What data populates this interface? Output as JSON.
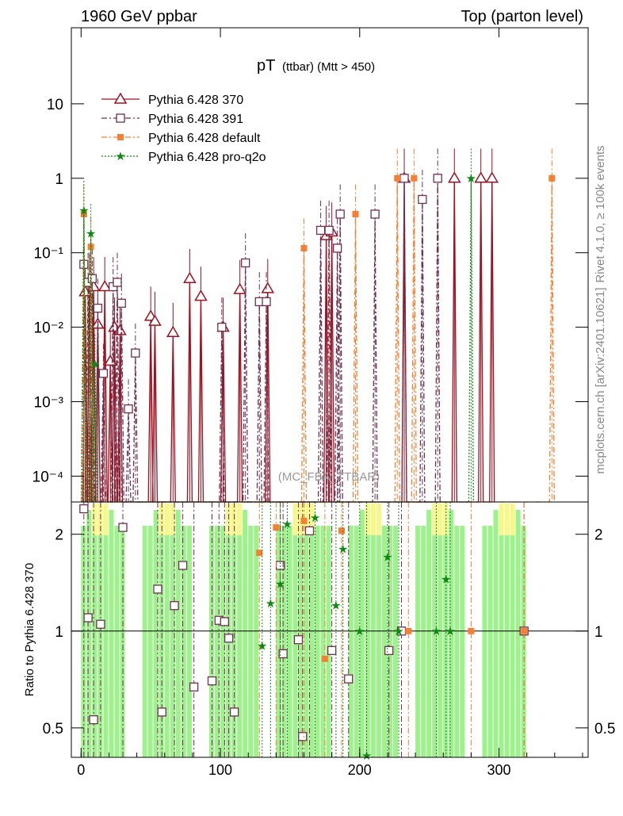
{
  "chart_data": {
    "type": "line",
    "header_left": "1960 GeV ppbar",
    "header_right": "Top (parton level)",
    "title_main": "pT",
    "title_sub": "(ttbar) (Mtt > 450)",
    "watermark": "(MC_FBA_TTBAR)",
    "side_label_top": "Rivet 4.1.0, ≥ 100k events",
    "side_label_bottom": "mcplots.cern.ch [arXiv:2401.10621]",
    "ratio_ylabel": "Ratio to Pythia 6.428 370",
    "xlim": [
      -7,
      364
    ],
    "ylim": [
      4.5e-05,
      105
    ],
    "ratio_ylim": [
      0.405,
      2.52
    ],
    "xticks": [
      0,
      100,
      200,
      300
    ],
    "yticks": [
      {
        "v": 10,
        "label": "10"
      },
      {
        "v": 1,
        "label": "1"
      },
      {
        "v": 0.1,
        "label": "10⁻¹"
      },
      {
        "v": 0.01,
        "label": "10⁻²"
      },
      {
        "v": 0.001,
        "label": "10⁻³"
      },
      {
        "v": 0.0001,
        "label": "10⁻⁴"
      }
    ],
    "ratio_yticks": [
      {
        "v": 2,
        "label": "2"
      },
      {
        "v": 1,
        "label": "1"
      },
      {
        "v": 0.5,
        "label": "0.5"
      }
    ],
    "series": [
      {
        "name": "Pythia 6.428 370",
        "color": "#a0101e",
        "marker": "triangle",
        "dash": "",
        "points": [
          [
            3,
            0.03
          ],
          [
            6,
            0.04
          ],
          [
            9,
            0.035
          ],
          [
            12,
            0.011
          ],
          [
            17,
            0.035
          ],
          [
            21,
            0.0035
          ],
          [
            24,
            0.01
          ],
          [
            28,
            0.009
          ],
          [
            50,
            0.014
          ],
          [
            53,
            0.012
          ],
          [
            66,
            0.0085
          ],
          [
            78,
            0.045
          ],
          [
            86,
            0.026
          ],
          [
            102,
            0.01
          ],
          [
            114,
            0.032
          ],
          [
            134,
            0.033
          ],
          [
            176,
            0.17
          ],
          [
            180,
            0.19
          ],
          [
            232,
            1
          ],
          [
            268,
            1
          ],
          [
            287,
            1
          ],
          [
            295,
            1
          ]
        ],
        "ratio": []
      },
      {
        "name": "Pythia 6.428 391",
        "color": "#6e3050",
        "marker": "square",
        "dash": "7,3,2,3",
        "points": [
          [
            2,
            0.07
          ],
          [
            5,
            0.04
          ],
          [
            8,
            0.045
          ],
          [
            12,
            0.018
          ],
          [
            16,
            0.0024
          ],
          [
            23,
            0.035
          ],
          [
            26,
            0.04
          ],
          [
            29,
            0.021
          ],
          [
            34,
            0.0008
          ],
          [
            39,
            0.0045
          ],
          [
            101,
            0.01
          ],
          [
            118,
            0.073
          ],
          [
            128,
            0.022
          ],
          [
            133,
            0.022
          ],
          [
            172,
            0.2
          ],
          [
            178,
            0.2
          ],
          [
            184,
            0.115
          ],
          [
            186,
            0.33
          ],
          [
            211,
            0.33
          ],
          [
            232,
            1
          ],
          [
            245,
            0.52
          ],
          [
            256,
            1
          ]
        ],
        "ratio": [
          [
            2,
            2.4
          ],
          [
            5,
            1.1
          ],
          [
            9,
            0.53
          ],
          [
            14,
            1.05
          ],
          [
            30,
            2.1
          ],
          [
            55,
            1.35
          ],
          [
            58,
            0.56
          ],
          [
            67,
            1.2
          ],
          [
            73,
            1.6
          ],
          [
            81,
            0.67
          ],
          [
            94,
            0.7
          ],
          [
            99,
            1.08
          ],
          [
            103,
            1.07
          ],
          [
            106,
            0.95
          ],
          [
            110,
            0.56
          ],
          [
            143,
            1.6
          ],
          [
            145,
            0.85
          ],
          [
            156,
            0.94
          ],
          [
            159,
            0.47
          ],
          [
            164,
            2.05
          ],
          [
            180,
            0.87
          ],
          [
            192,
            0.71
          ],
          [
            221,
            0.87
          ],
          [
            230,
            1
          ],
          [
            318,
            1
          ]
        ]
      },
      {
        "name": "Pythia 6.428 default",
        "color": "#f57f32",
        "marker": "filled-square",
        "dash": "7,3,2,3",
        "points": [
          [
            2,
            0.33
          ],
          [
            7,
            0.12
          ],
          [
            160,
            0.115
          ],
          [
            197,
            0.33
          ],
          [
            227,
            1
          ],
          [
            239,
            1
          ],
          [
            338,
            1
          ]
        ],
        "ratio": [
          [
            128,
            1.75
          ],
          [
            140,
            2.1
          ],
          [
            160,
            2.2
          ],
          [
            175,
            0.82
          ],
          [
            187,
            2.05
          ],
          [
            235,
            1
          ],
          [
            280,
            1
          ],
          [
            318,
            1
          ]
        ]
      },
      {
        "name": "Pythia 6.428 pro-q2o",
        "color": "#118811",
        "marker": "star",
        "dash": "2,2",
        "points": [
          [
            2,
            0.37
          ],
          [
            7,
            0.18
          ],
          [
            10,
            0.0032
          ],
          [
            280,
            1
          ]
        ],
        "ratio": [
          [
            130,
            0.9
          ],
          [
            136,
            1.22
          ],
          [
            143,
            1.4
          ],
          [
            148,
            2.15
          ],
          [
            168,
            2.25
          ],
          [
            183,
            1.2
          ],
          [
            188,
            1.8
          ],
          [
            200,
            1
          ],
          [
            205,
            0.41
          ],
          [
            220,
            1.7
          ],
          [
            228,
            1
          ],
          [
            255,
            1
          ],
          [
            262,
            1.45
          ],
          [
            265,
            1
          ]
        ]
      }
    ]
  }
}
